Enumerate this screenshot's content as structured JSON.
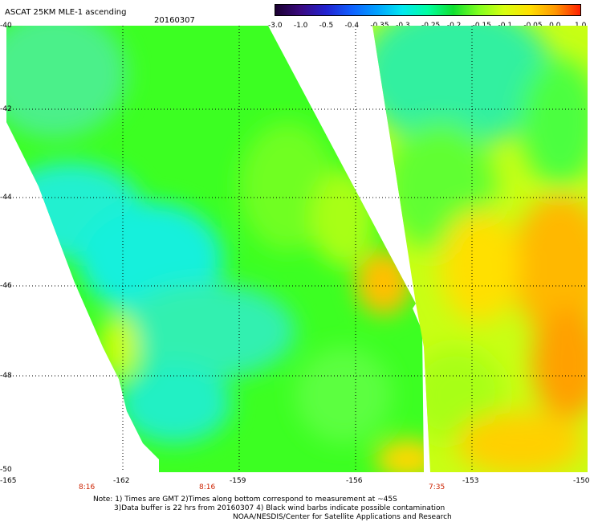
{
  "header": {
    "title": "ASCAT 25KM MLE-1 ascending",
    "date": "20160307"
  },
  "colorbar": {
    "labels": [
      "-3.0",
      "-1.0",
      "-0.5",
      "-0.4",
      "-0.35",
      "-0.3",
      "-0.25",
      "-0.2",
      "-0.15",
      "-0.1",
      "-0.05",
      "0.0",
      "1.0"
    ],
    "colors": [
      "#1a0030",
      "#3a0a80",
      "#2222d0",
      "#1060ff",
      "#00a0ff",
      "#00e8f0",
      "#00ffa0",
      "#10e030",
      "#80ff20",
      "#d8ff10",
      "#ffe000",
      "#ff9800",
      "#ff2000"
    ]
  },
  "map": {
    "lat_labels": [
      "-40",
      "-42",
      "-44",
      "-46",
      "-48",
      "-50"
    ],
    "lon_labels": [
      "-165",
      "-162",
      "-159",
      "-156",
      "-153",
      "-150"
    ],
    "pass_times": [
      "8:16",
      "8:16",
      "7:35"
    ],
    "colors": {
      "cyan": "#12f0dc",
      "green": "#3cff22",
      "yellow": "#ffe800",
      "orange": "#ffa800"
    }
  },
  "notes": {
    "line1": "Note: 1) Times are GMT 2)Times along bottom correspond to measurement at ~45S",
    "line2": "3)Data buffer is 22 hrs from 20160307 4) Black wind barbs indicate possible contamination",
    "line3": "NOAA/NESDIS/Center for Satellite Applications and Research"
  }
}
